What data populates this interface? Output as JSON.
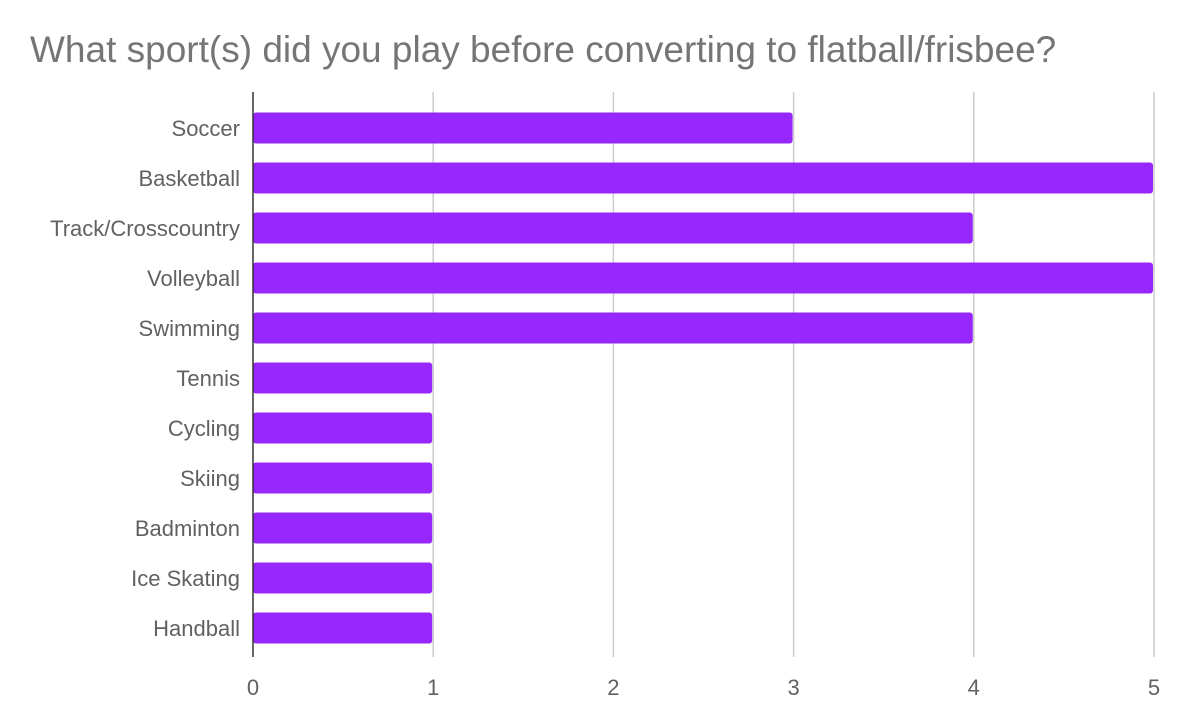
{
  "chart_data": {
    "type": "bar",
    "orientation": "horizontal",
    "title": "What sport(s) did you play before converting to flatball/frisbee?",
    "xlabel": "",
    "ylabel": "",
    "categories": [
      "Soccer",
      "Basketball",
      "Track/Crosscountry",
      "Volleyball",
      "Swimming",
      "Tennis",
      "Cycling",
      "Skiing",
      "Badminton",
      "Ice Skating",
      "Handball"
    ],
    "values": [
      3,
      5,
      4,
      5,
      4,
      1,
      1,
      1,
      1,
      1,
      1
    ],
    "xlim": [
      0,
      5
    ],
    "xticks": [
      "0",
      "1",
      "2",
      "3",
      "4",
      "5"
    ],
    "grid": true,
    "legend": "none",
    "bar_color": "#9727fd"
  }
}
